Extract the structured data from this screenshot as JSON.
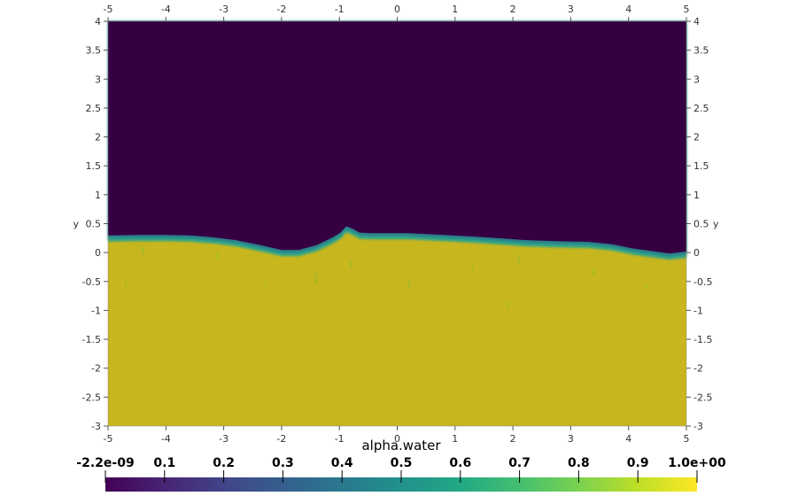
{
  "chart_data": {
    "type": "heatmap",
    "field": "alpha.water",
    "xlim": [
      -5,
      5
    ],
    "ylim": [
      -3,
      4
    ],
    "x_ticks": [
      "-5",
      "-4",
      "-3",
      "-2",
      "-1",
      "0",
      "1",
      "2",
      "3",
      "4",
      "5"
    ],
    "y_ticks": [
      "-3",
      "-2.5",
      "-2",
      "-1.5",
      "-1",
      "-0.5",
      "0",
      "0.5",
      "1",
      "1.5",
      "2",
      "2.5",
      "3",
      "3.5",
      "4"
    ],
    "ylabel": "y",
    "colorbar": {
      "title": "alpha.water",
      "colormap": "viridis",
      "range": [
        -2.2e-09,
        1.0
      ],
      "labels": [
        "-2.2e-09",
        "0.1",
        "0.2",
        "0.3",
        "0.4",
        "0.5",
        "0.6",
        "0.7",
        "0.8",
        "0.9",
        "1.0e+00"
      ]
    },
    "colors": {
      "air": "#340042",
      "water": "#c8b61e",
      "interface": "#2fa58a",
      "bubble": "#9cba2a"
    },
    "interface_profile": {
      "x": [
        -5,
        -4.5,
        -4,
        -3.6,
        -3.2,
        -2.8,
        -2.4,
        -2.0,
        -1.7,
        -1.4,
        -1.15,
        -0.98,
        -0.88,
        -0.78,
        -0.65,
        -0.45,
        -0.2,
        0.2,
        0.8,
        1.5,
        2.2,
        2.8,
        3.3,
        3.7,
        4.1,
        4.4,
        4.7,
        5
      ],
      "y": [
        0.25,
        0.26,
        0.26,
        0.25,
        0.22,
        0.17,
        0.09,
        0.0,
        0.0,
        0.08,
        0.2,
        0.3,
        0.41,
        0.37,
        0.3,
        0.29,
        0.29,
        0.29,
        0.26,
        0.22,
        0.17,
        0.15,
        0.14,
        0.1,
        0.02,
        -0.02,
        -0.06,
        -0.03
      ]
    }
  }
}
